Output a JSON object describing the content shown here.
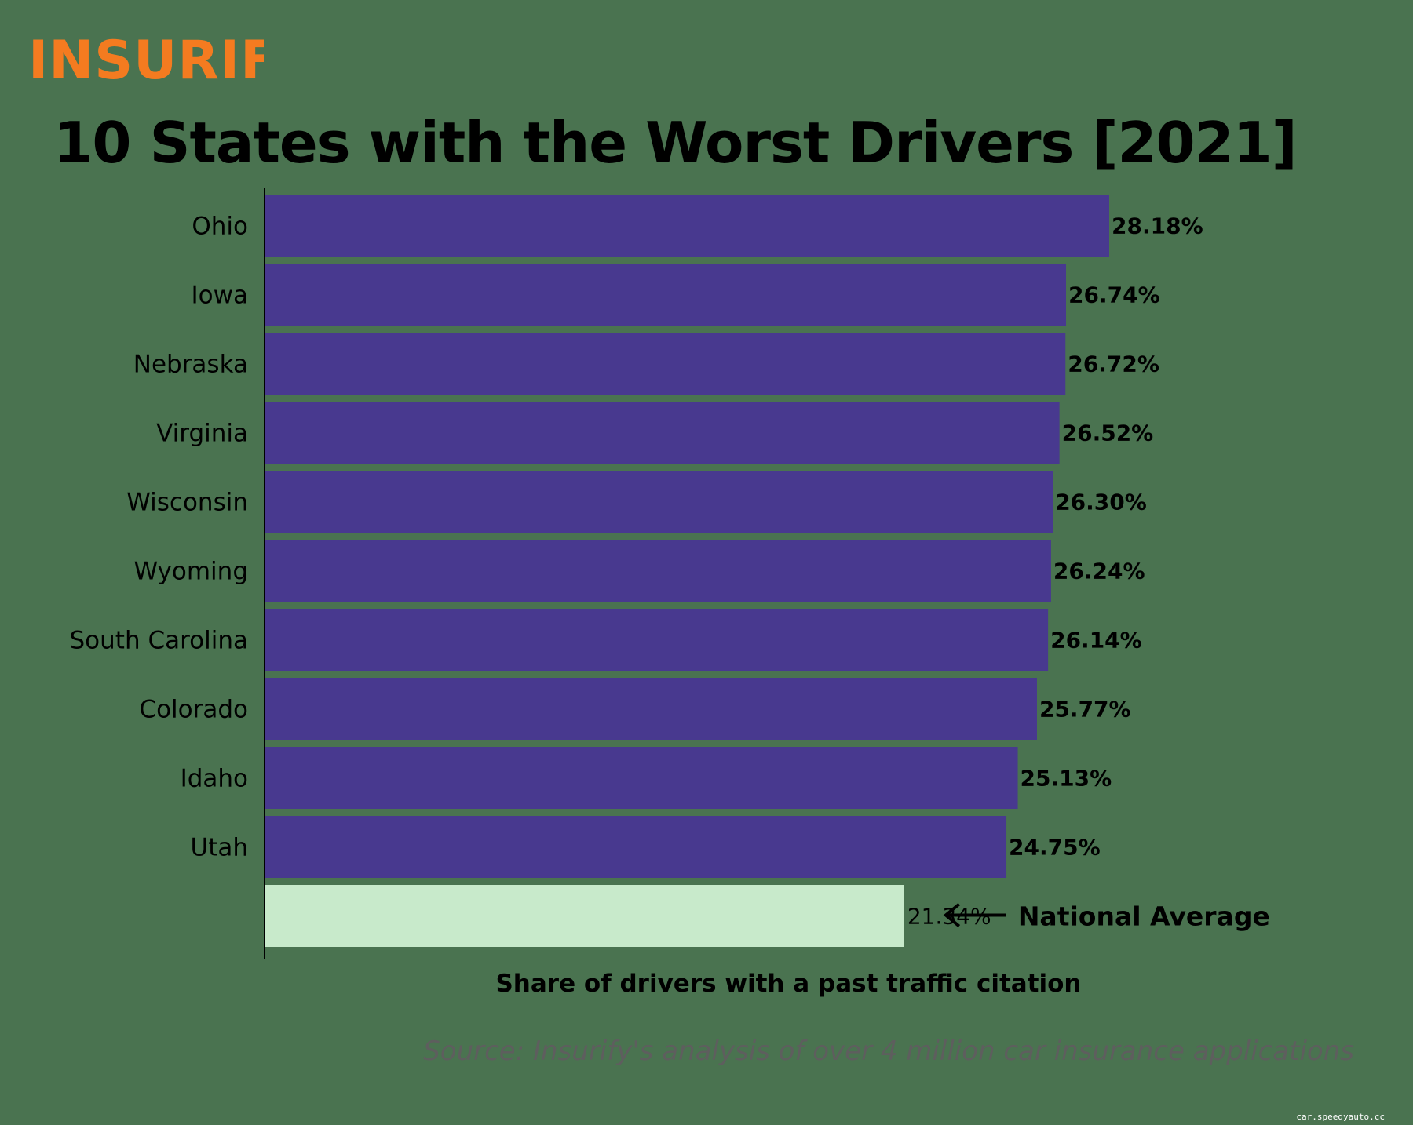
{
  "logo": {
    "text": "INSURIFY",
    "color": "#f47b20"
  },
  "watermark": "car.speedyauto.cc",
  "chart_data": {
    "type": "bar",
    "orientation": "horizontal",
    "title": "10 States with the Worst Drivers [2021]",
    "xlabel": "Share of drivers with a past traffic citation",
    "ylabel": "",
    "categories": [
      "Ohio",
      "Iowa",
      "Nebraska",
      "Virginia",
      "Wisconsin",
      "Wyoming",
      "South Carolina",
      "Colorado",
      "Idaho",
      "Utah"
    ],
    "values": [
      28.18,
      26.74,
      26.72,
      26.52,
      26.3,
      26.24,
      26.14,
      25.77,
      25.13,
      24.75
    ],
    "value_labels": [
      "28.18%",
      "26.74%",
      "26.72%",
      "26.52%",
      "26.30%",
      "26.24%",
      "26.14%",
      "25.77%",
      "25.13%",
      "24.75%"
    ],
    "xlim": [
      0,
      28.18
    ],
    "grid": false,
    "bar_color": "#48398f",
    "reference": {
      "label": "National Average",
      "value": 21.34,
      "value_label": "21.34%",
      "color": "#c8eacb"
    },
    "source": "Source: Insurify's analysis of over 4 million car insurance applications"
  }
}
